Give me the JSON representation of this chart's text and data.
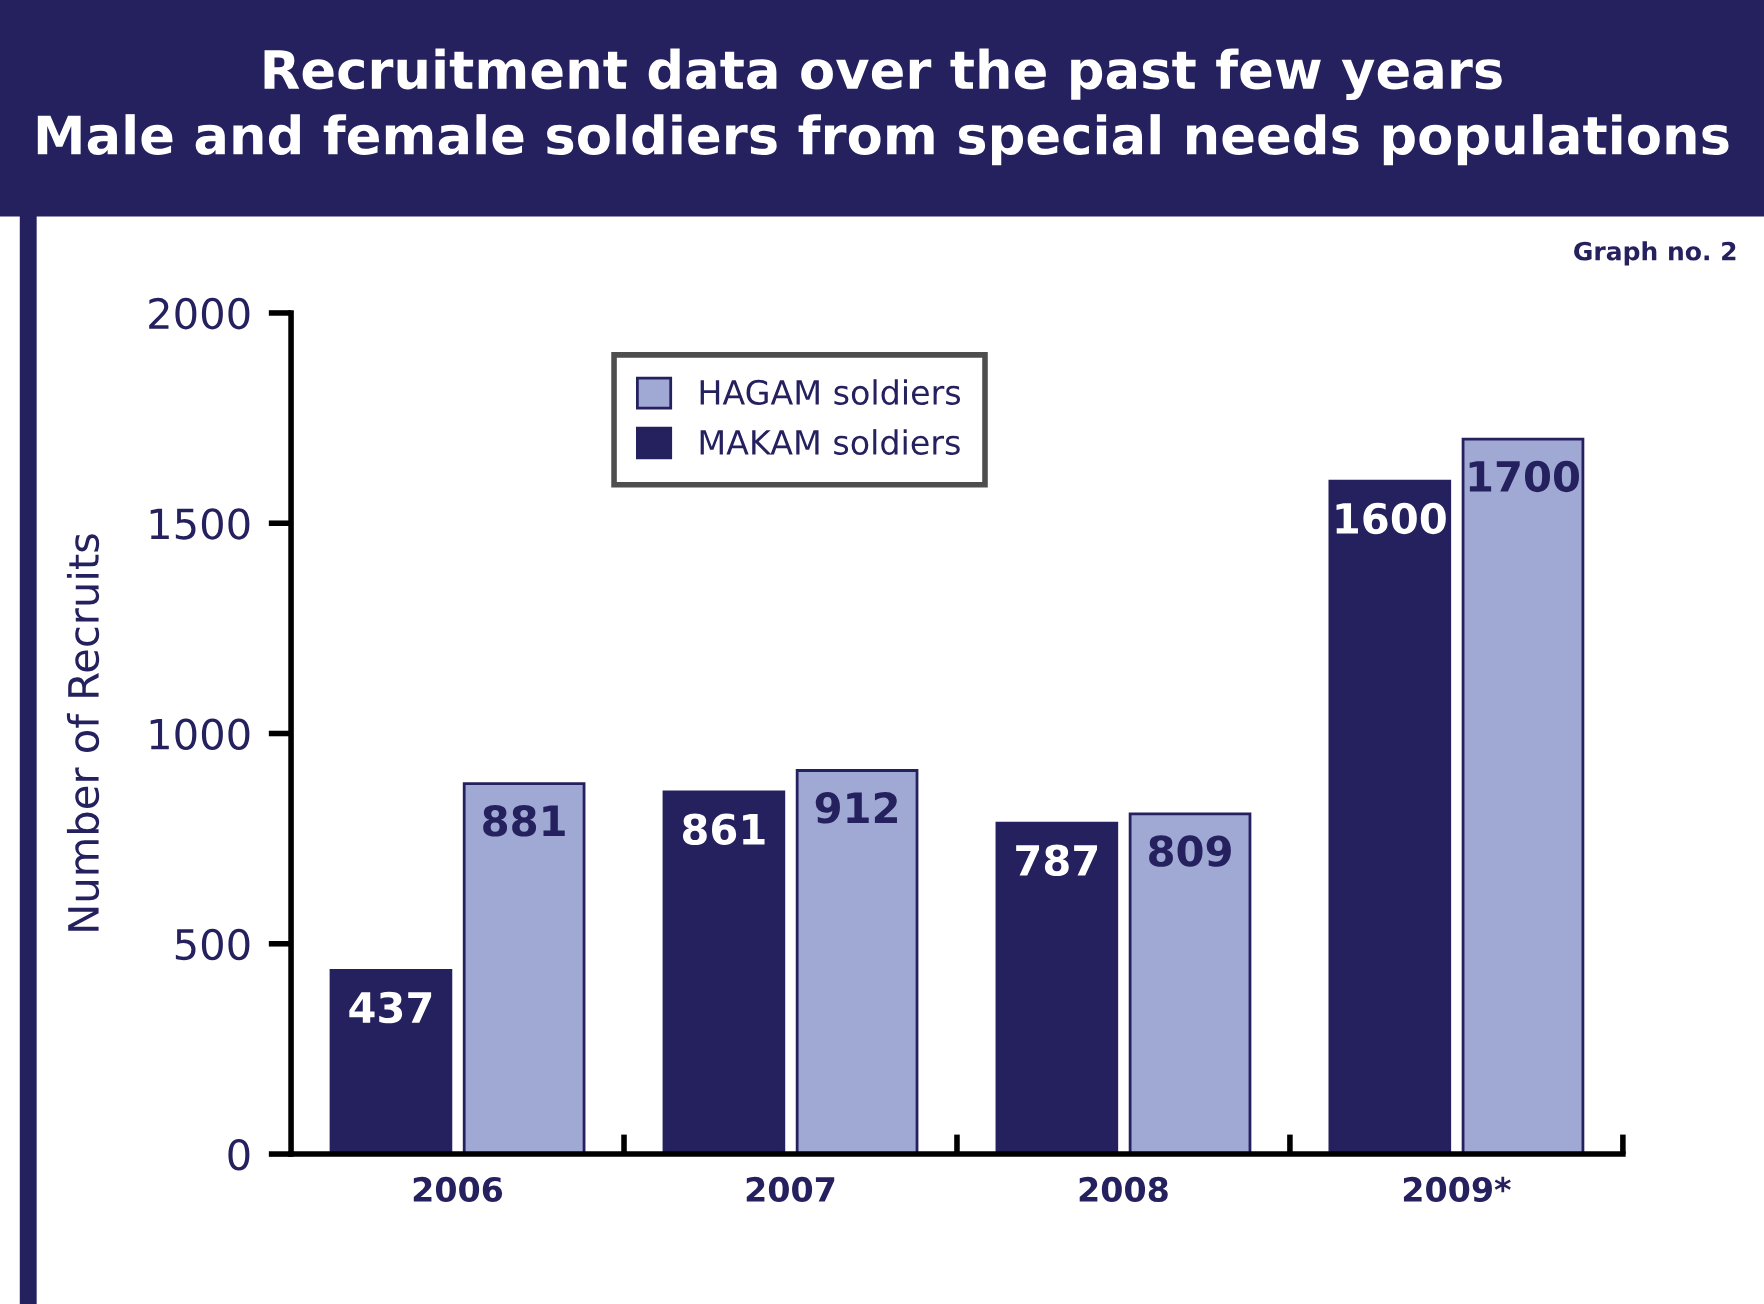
{
  "chart_data": {
    "type": "bar",
    "title": "Recruitment data over the past few years\nMale and female soldiers from special needs populations",
    "annotations": [
      "Graph no. 2"
    ],
    "ylabel": "Number of Recruits",
    "categories": [
      "2006",
      "2007",
      "2008",
      "2009*"
    ],
    "series": [
      {
        "name": "MAKAM soldiers",
        "color": "#25205e",
        "values": [
          437,
          861,
          787,
          1600
        ]
      },
      {
        "name": "HAGAM soldiers",
        "color": "#a0a8d4",
        "values": [
          881,
          912,
          809,
          1700
        ]
      }
    ],
    "ylim": [
      0,
      2000
    ],
    "yticks": [
      0,
      500,
      1000,
      1500,
      2000
    ],
    "data_labels": true,
    "grid": false,
    "legend": "top left"
  }
}
